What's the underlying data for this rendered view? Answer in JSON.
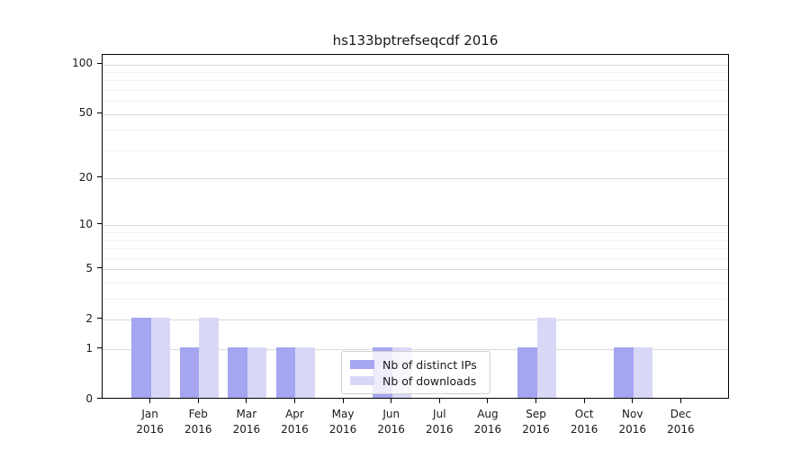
{
  "chart_data": {
    "type": "bar",
    "title": "hs133bptrefseqcdf 2016",
    "year_label": "2016",
    "categories": [
      "Jan",
      "Feb",
      "Mar",
      "Apr",
      "May",
      "Jun",
      "Jul",
      "Aug",
      "Sep",
      "Oct",
      "Nov",
      "Dec"
    ],
    "series": [
      {
        "name": "Nb of distinct IPs",
        "color": "#a5a5f1",
        "values": [
          2,
          1,
          1,
          1,
          0,
          1,
          0,
          0,
          1,
          0,
          1,
          0
        ]
      },
      {
        "name": "Nb of downloads",
        "color": "#d8d8f6",
        "values": [
          2,
          2,
          1,
          1,
          0,
          1,
          0,
          0,
          2,
          0,
          1,
          0
        ]
      }
    ],
    "y_axis": {
      "scale": "log1p",
      "ticks": [
        0,
        1,
        2,
        5,
        10,
        20,
        50,
        100
      ],
      "minor_ticks": [
        3,
        4,
        6,
        7,
        8,
        9,
        30,
        40,
        60,
        70,
        80,
        90
      ],
      "max_value": 114
    },
    "grid": {
      "enabled": true,
      "major_color": "#d8d8d8",
      "minor_color": "#f1f1f1"
    },
    "legend": {
      "position": "inside-bottom-center",
      "background": "rgba(255,255,255,0.8)"
    }
  }
}
